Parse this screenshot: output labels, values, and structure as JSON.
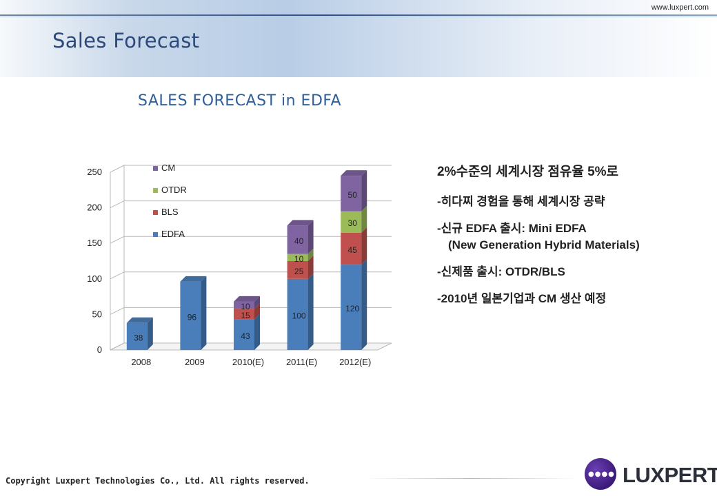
{
  "header": {
    "url": "www.luxpert.com",
    "page_title": "Sales Forecast"
  },
  "chart_title": "SALES FORECAST in EDFA",
  "chart_data": {
    "type": "bar",
    "stacked": true,
    "categories": [
      "2008",
      "2009",
      "2010(E)",
      "2011(E)",
      "2012(E)"
    ],
    "series": [
      {
        "name": "EDFA",
        "values": [
          38,
          96,
          43,
          100,
          120
        ],
        "color": "#4a7ebb",
        "labels": [
          "38",
          "96",
          "43",
          "100",
          "120"
        ]
      },
      {
        "name": "BLS",
        "values": [
          0,
          0,
          15,
          25,
          45
        ],
        "color": "#c0504d",
        "labels": [
          "",
          "",
          "15",
          "25",
          "45"
        ]
      },
      {
        "name": "OTDR",
        "values": [
          0,
          0,
          0,
          10,
          30
        ],
        "color": "#9bbb59",
        "labels": [
          "",
          "",
          "",
          "10",
          "30"
        ]
      },
      {
        "name": "CM",
        "values": [
          0,
          0,
          10,
          40,
          50
        ],
        "color": "#8064a2",
        "labels": [
          "",
          "",
          "10",
          "40",
          "50"
        ]
      }
    ],
    "ylim": [
      0,
      250
    ],
    "yticks": [
      "0",
      "50",
      "100",
      "150",
      "200",
      "250"
    ],
    "legend_order": [
      "CM",
      "OTDR",
      "BLS",
      "EDFA"
    ],
    "legend_position": "top-left",
    "grid": true
  },
  "bullets": {
    "headline": "2%수준의 세계시장 점유율 5%로",
    "items": [
      {
        "line1": "-히다찌 경험을 통해 세계시장 공략",
        "line2": ""
      },
      {
        "line1": "-신규 EDFA 출시: Mini EDFA",
        "line2": "(New Generation Hybrid Materials)"
      },
      {
        "line1": "-신제품 출시: OTDR/BLS",
        "line2": ""
      },
      {
        "line1": "-2010년 일본기업과 CM 생산 예정",
        "line2": ""
      }
    ]
  },
  "footer": {
    "copyright": "Copyright Luxpert Technologies Co., Ltd. All rights reserved.",
    "logo_text": "LUXPERT",
    "logo_dots": "●●●●"
  }
}
